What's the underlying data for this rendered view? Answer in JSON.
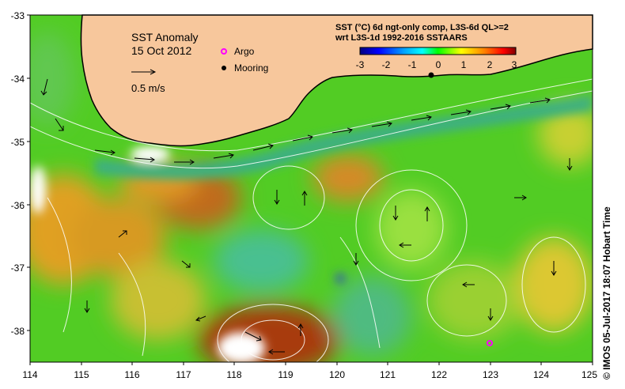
{
  "map": {
    "title": "SST Anomaly",
    "date": "15 Oct 2012",
    "colorbar_title_line1": "SST (°C) 6d ngt-only comp, L3S-6d QL>=2",
    "colorbar_title_line2": "wrt L3S-1d 1992-2016 SSTAARS",
    "colorbar_ticks": [
      "-3",
      "-2",
      "-1",
      "0",
      "1",
      "2",
      "3"
    ],
    "colorbar_range": [
      -3,
      3
    ],
    "legend_argo": "Argo",
    "legend_mooring": "Mooring",
    "velocity_scale_label": "0.5 m/s",
    "x_ticks": [
      "114",
      "115",
      "116",
      "117",
      "118",
      "119",
      "120",
      "121",
      "122",
      "123",
      "124",
      "125"
    ],
    "y_ticks": [
      "-33",
      "-34",
      "-35",
      "-36",
      "-37",
      "-38"
    ],
    "lon_range": [
      114,
      125
    ],
    "lat_range": [
      -33,
      -38.5
    ],
    "credit": "© IMOS 05-Jul-2017 18:07 Hobart Time",
    "colors": {
      "land": "#F7C79C",
      "argo": "#FF00FF",
      "mooring": "#000000",
      "colorbar": [
        "#000080",
        "#0000FF",
        "#00A0FF",
        "#00FFFF",
        "#00FF00",
        "#FFFF00",
        "#FF8000",
        "#FF0000",
        "#800000"
      ]
    }
  }
}
